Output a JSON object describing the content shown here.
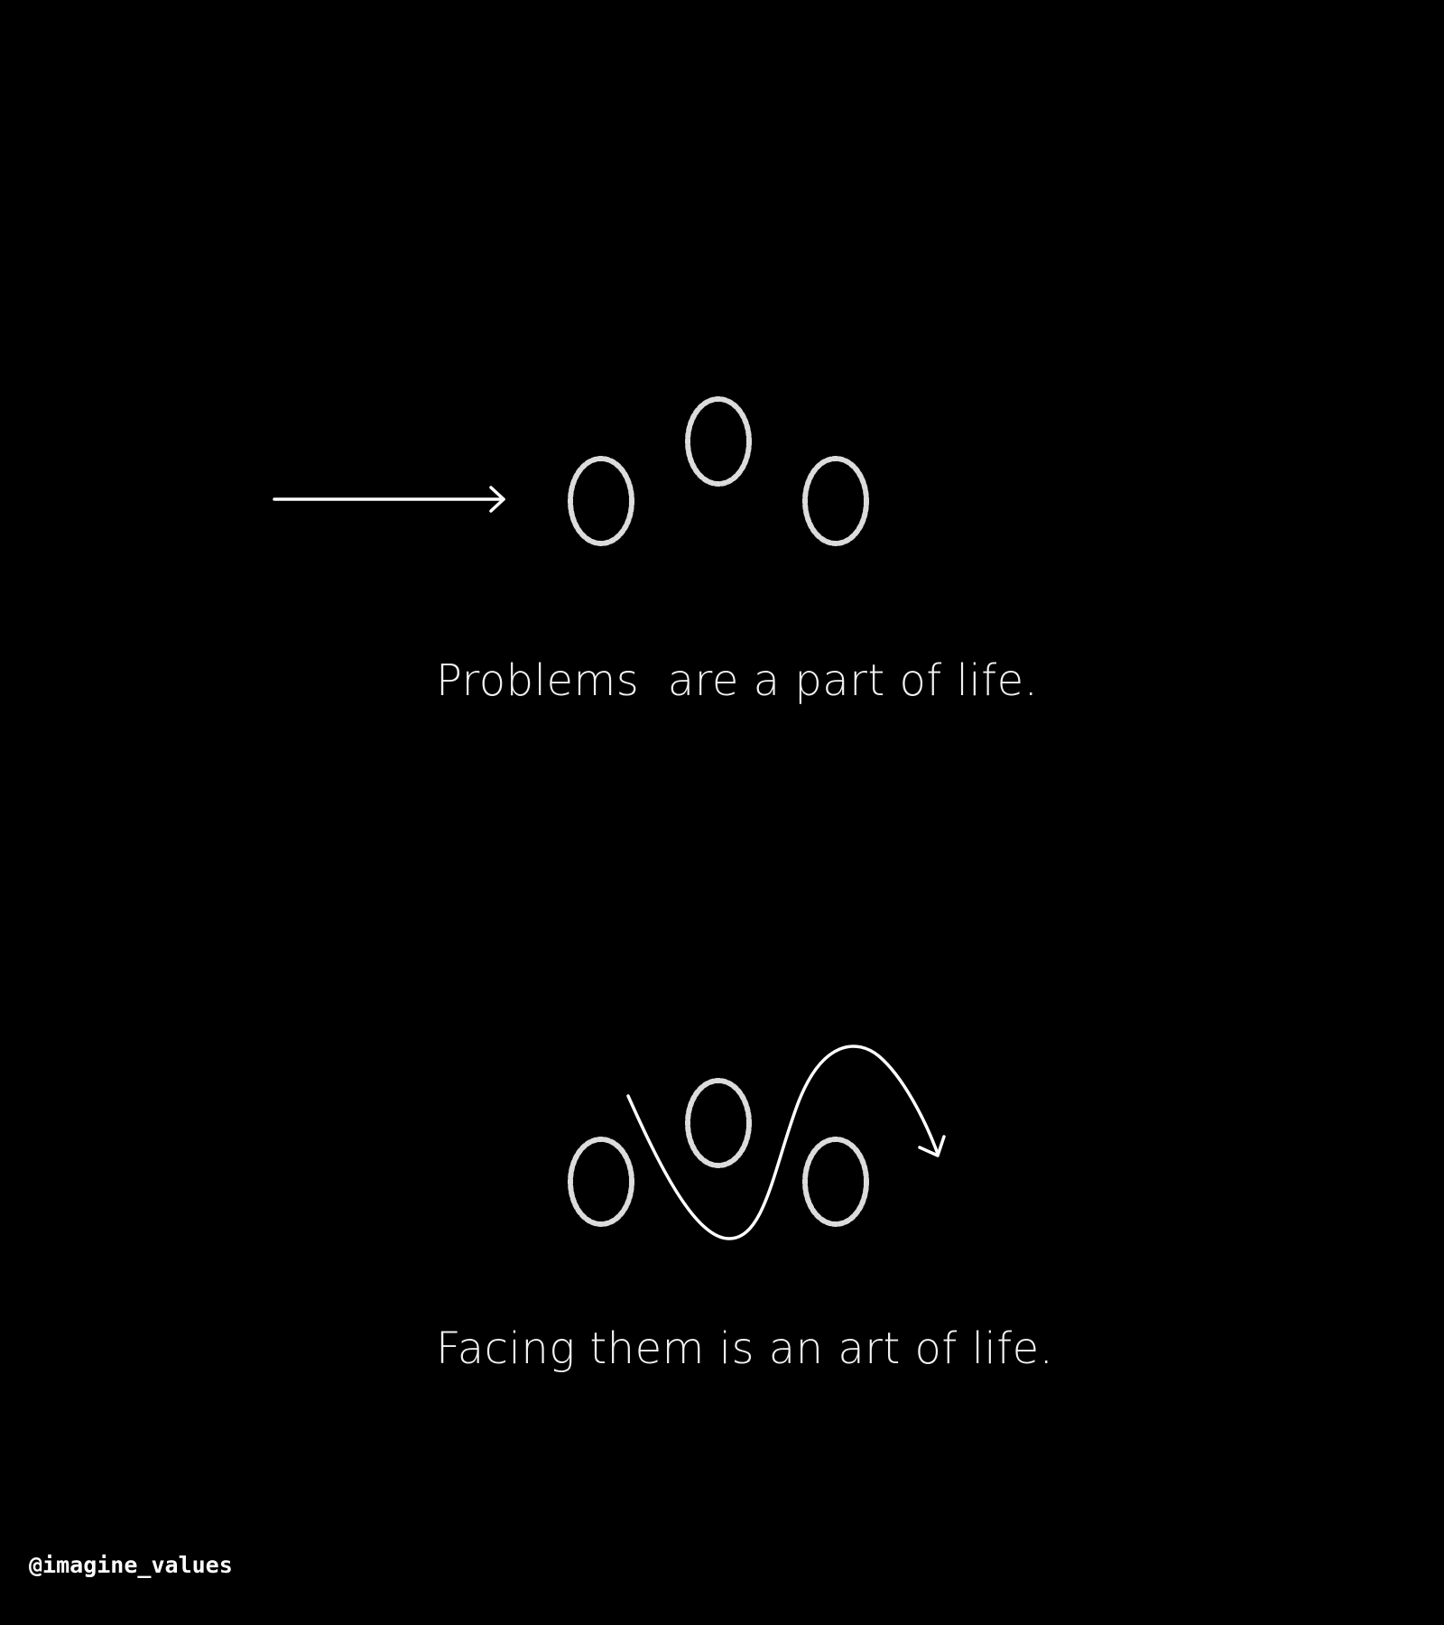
{
  "captions": {
    "line1": "Problems  are a part of life.",
    "line2": "Facing them is an art of life."
  },
  "watermark": {
    "handle": "@imagine_values"
  },
  "colors": {
    "background": "#000000",
    "foreground": "#ffffff"
  },
  "icons": {
    "straight_arrow": "arrow-right-icon",
    "weaving_arrow": "curved-arrow-icon",
    "obstacle": "dotted-ring-icon"
  }
}
